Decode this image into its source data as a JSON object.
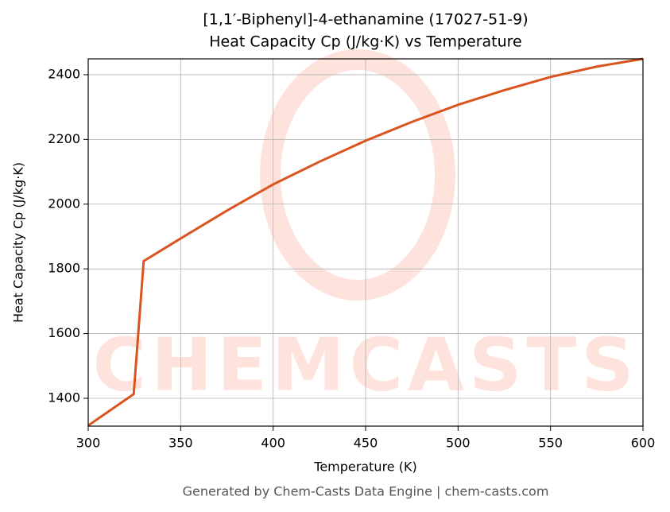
{
  "chart_data": {
    "type": "line",
    "title": "[1,1′-Biphenyl]-4-ethanamine (17027-51-9)",
    "subtitle": "Heat Capacity Cp (J/kg·K) vs Temperature",
    "x_label": "Temperature (K)",
    "y_label": "Heat Capacity Cp (J/kg·K)",
    "footer": "Generated by Chem-Casts Data Engine | chem-casts.com",
    "watermark": "CHEMCASTS",
    "x": [
      300,
      324.6,
      330,
      350,
      375,
      400,
      425,
      450,
      475,
      500,
      525,
      550,
      575,
      600
    ],
    "series": [
      {
        "name": "Cp",
        "color": "#d9541e",
        "values": [
          1316,
          1413,
          1824,
          1894,
          1980,
          2061,
          2131,
          2196,
          2254,
          2307,
          2352,
          2393,
          2425,
          2449
        ]
      }
    ],
    "xlim": [
      300,
      600
    ],
    "xticks": [
      300,
      350,
      400,
      450,
      500,
      550,
      600
    ],
    "ylim": [
      1314,
      2449
    ],
    "yticks": [
      1400,
      1600,
      1800,
      2000,
      2200,
      2400
    ],
    "grid": true
  }
}
